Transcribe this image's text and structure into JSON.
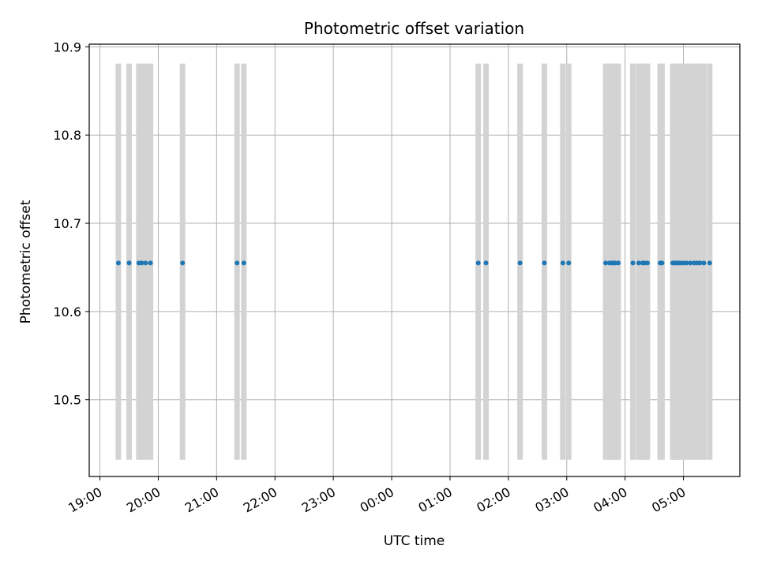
{
  "chart_data": {
    "type": "scatter",
    "title": "Photometric offset variation",
    "xlabel": "UTC time",
    "ylabel": "Photometric offset",
    "x_ticks": [
      "19:00",
      "20:00",
      "21:00",
      "22:00",
      "23:00",
      "00:00",
      "01:00",
      "02:00",
      "03:00",
      "04:00",
      "05:00"
    ],
    "y_ticks": [
      "10.5",
      "10.6",
      "10.7",
      "10.8",
      "10.9"
    ],
    "xlim": [
      "18:49",
      "05:58"
    ],
    "ylim": [
      10.413,
      10.903
    ],
    "grid": true,
    "marker_color": "#1f77b4",
    "band_color": "#d3d3d3",
    "band_range": [
      10.432,
      10.881
    ],
    "series": [
      {
        "x": [
          "19:19",
          "19:30",
          "19:40",
          "19:43",
          "19:47",
          "19:52",
          "20:25",
          "21:21",
          "21:28",
          "01:29",
          "01:37",
          "02:12",
          "02:37",
          "02:56",
          "03:02",
          "03:40",
          "03:44",
          "03:46",
          "03:48",
          "03:50",
          "03:53",
          "04:08",
          "04:14",
          "04:18",
          "04:20",
          "04:23",
          "04:36",
          "04:38",
          "04:49",
          "04:51",
          "04:53",
          "04:55",
          "04:57",
          "05:00",
          "05:03",
          "05:07",
          "05:11",
          "05:14",
          "05:17",
          "05:21",
          "05:27"
        ],
        "y": [
          10.655,
          10.655,
          10.655,
          10.655,
          10.655,
          10.655,
          10.655,
          10.655,
          10.655,
          10.655,
          10.655,
          10.655,
          10.655,
          10.655,
          10.655,
          10.655,
          10.655,
          10.655,
          10.655,
          10.655,
          10.655,
          10.655,
          10.655,
          10.655,
          10.655,
          10.655,
          10.655,
          10.655,
          10.655,
          10.655,
          10.655,
          10.655,
          10.655,
          10.655,
          10.655,
          10.655,
          10.655,
          10.655,
          10.655,
          10.655,
          10.655
        ]
      }
    ]
  }
}
